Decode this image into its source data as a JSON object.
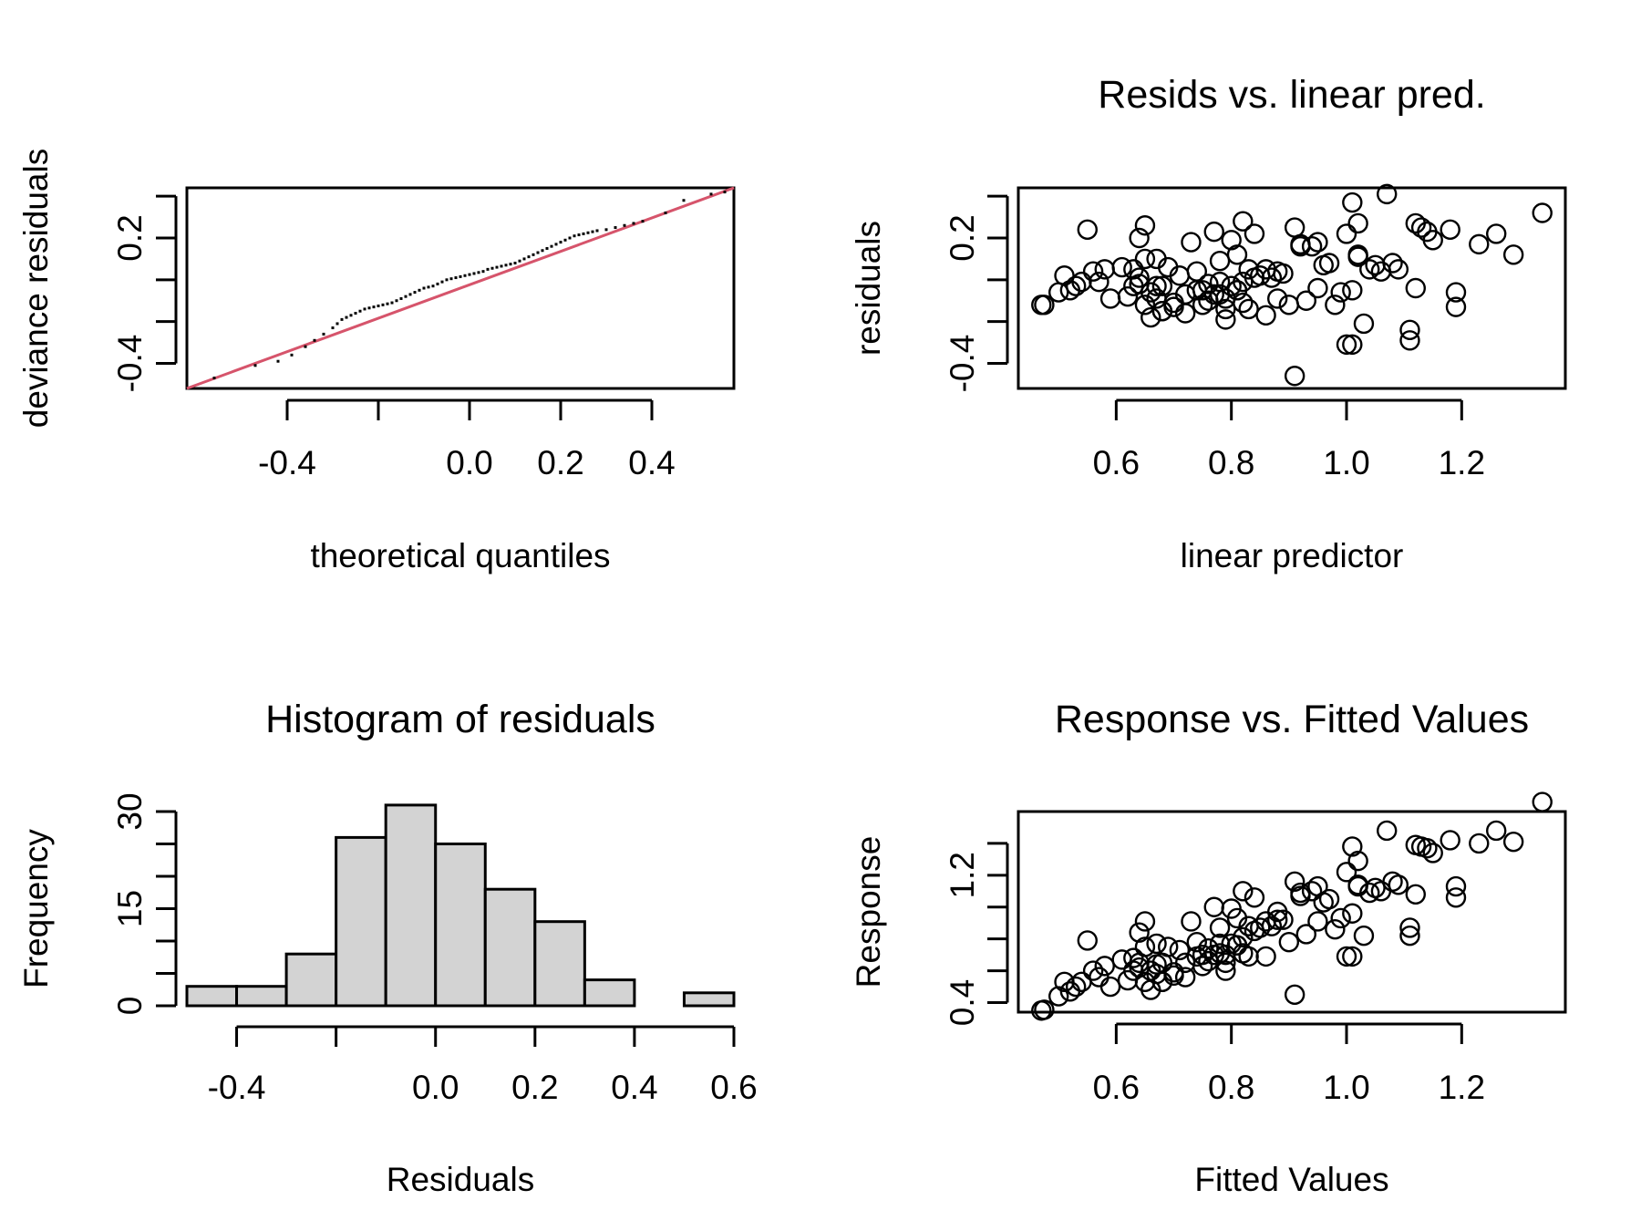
{
  "chart_data": [
    {
      "type": "scatter",
      "title": "",
      "xlabel": "theoretical quantiles",
      "ylabel": "deviance residuals",
      "xlim": [
        -0.62,
        0.58
      ],
      "ylim": [
        -0.52,
        0.44
      ],
      "xticks": [
        -0.4,
        -0.2,
        0.0,
        0.2,
        0.4
      ],
      "xtick_labels": [
        "-0.4",
        "",
        "0.0",
        "0.2",
        "0.4"
      ],
      "yticks": [
        -0.4,
        -0.2,
        0.0,
        0.2,
        0.4
      ],
      "ytick_labels": [
        "-0.4",
        "",
        "",
        "0.2",
        ""
      ],
      "reference_line": {
        "color": "#d6546b",
        "x": [
          -0.62,
          0.58
        ],
        "y": [
          -0.52,
          0.44
        ]
      },
      "points": {
        "x": [
          -0.56,
          -0.47,
          -0.42,
          -0.39,
          -0.36,
          -0.34,
          -0.32,
          -0.3,
          -0.29,
          -0.28,
          -0.27,
          -0.26,
          -0.25,
          -0.24,
          -0.23,
          -0.22,
          -0.21,
          -0.2,
          -0.19,
          -0.18,
          -0.17,
          -0.16,
          -0.15,
          -0.14,
          -0.13,
          -0.12,
          -0.11,
          -0.1,
          -0.09,
          -0.08,
          -0.07,
          -0.06,
          -0.05,
          -0.04,
          -0.03,
          -0.02,
          -0.01,
          0.0,
          0.01,
          0.02,
          0.03,
          0.04,
          0.05,
          0.06,
          0.07,
          0.08,
          0.09,
          0.1,
          0.11,
          0.12,
          0.13,
          0.14,
          0.15,
          0.16,
          0.17,
          0.18,
          0.19,
          0.2,
          0.21,
          0.22,
          0.23,
          0.24,
          0.25,
          0.26,
          0.27,
          0.28,
          0.3,
          0.32,
          0.34,
          0.36,
          0.38,
          0.43,
          0.47,
          0.53,
          0.56
        ],
        "y": [
          -0.47,
          -0.41,
          -0.39,
          -0.36,
          -0.32,
          -0.29,
          -0.26,
          -0.23,
          -0.21,
          -0.19,
          -0.18,
          -0.17,
          -0.16,
          -0.15,
          -0.14,
          -0.135,
          -0.13,
          -0.125,
          -0.12,
          -0.115,
          -0.11,
          -0.1,
          -0.09,
          -0.08,
          -0.07,
          -0.06,
          -0.05,
          -0.04,
          -0.035,
          -0.03,
          -0.02,
          -0.01,
          0.0,
          0.005,
          0.01,
          0.015,
          0.02,
          0.025,
          0.03,
          0.035,
          0.04,
          0.05,
          0.055,
          0.06,
          0.065,
          0.07,
          0.075,
          0.08,
          0.09,
          0.1,
          0.11,
          0.12,
          0.13,
          0.14,
          0.15,
          0.16,
          0.17,
          0.18,
          0.19,
          0.2,
          0.21,
          0.215,
          0.22,
          0.225,
          0.23,
          0.235,
          0.24,
          0.25,
          0.26,
          0.27,
          0.28,
          0.32,
          0.38,
          0.41,
          0.42
        ]
      }
    },
    {
      "type": "scatter",
      "title": "Resids vs. linear pred.",
      "xlabel": "linear predictor",
      "ylabel": "residuals",
      "xlim": [
        0.43,
        1.38
      ],
      "ylim": [
        -0.52,
        0.44
      ],
      "xticks": [
        0.6,
        0.8,
        1.0,
        1.2
      ],
      "xtick_labels": [
        "0.6",
        "0.8",
        "1.0",
        "1.2"
      ],
      "yticks": [
        -0.4,
        -0.2,
        0.0,
        0.2,
        0.4
      ],
      "ytick_labels": [
        "-0.4",
        "",
        "",
        "0.2",
        ""
      ],
      "points": {
        "x": [
          0.47,
          0.475,
          0.5,
          0.51,
          0.52,
          0.53,
          0.54,
          0.55,
          0.56,
          0.57,
          0.58,
          0.59,
          0.62,
          0.63,
          0.63,
          0.64,
          0.64,
          0.65,
          0.65,
          0.65,
          0.66,
          0.66,
          0.67,
          0.67,
          0.68,
          0.68,
          0.69,
          0.7,
          0.71,
          0.72,
          0.73,
          0.74,
          0.74,
          0.75,
          0.76,
          0.76,
          0.77,
          0.77,
          0.78,
          0.78,
          0.79,
          0.79,
          0.8,
          0.8,
          0.81,
          0.81,
          0.82,
          0.82,
          0.83,
          0.83,
          0.84,
          0.85,
          0.86,
          0.87,
          0.88,
          0.89,
          0.9,
          0.91,
          0.92,
          0.93,
          0.94,
          0.95,
          0.96,
          0.97,
          0.98,
          0.99,
          1.0,
          1.01,
          1.01,
          1.02,
          1.02,
          1.03,
          1.04,
          1.05,
          1.07,
          1.08,
          1.09,
          1.11,
          1.12,
          1.12,
          1.13,
          1.14,
          1.15,
          1.18,
          1.19,
          1.19,
          1.23,
          1.26,
          1.29,
          1.34,
          1.0,
          1.01,
          1.06,
          0.91,
          0.92,
          0.95,
          1.02,
          0.64,
          0.61,
          0.67,
          0.7,
          0.75,
          0.88,
          1.11,
          0.86,
          0.84,
          0.78,
          0.81,
          0.68,
          0.72,
          0.79,
          0.82
        ],
        "y": [
          -0.12,
          -0.12,
          -0.06,
          0.02,
          -0.05,
          -0.03,
          -0.01,
          0.24,
          0.04,
          -0.01,
          0.05,
          -0.09,
          -0.08,
          0.05,
          -0.03,
          -0.02,
          0.2,
          -0.12,
          0.1,
          0.26,
          -0.06,
          -0.18,
          -0.03,
          0.1,
          -0.15,
          -0.03,
          0.06,
          -0.13,
          0.02,
          -0.16,
          0.18,
          -0.05,
          0.04,
          -0.12,
          -0.02,
          -0.1,
          -0.07,
          0.23,
          0.09,
          -0.07,
          -0.09,
          -0.14,
          -0.03,
          0.19,
          -0.05,
          0.12,
          -0.01,
          0.28,
          0.05,
          -0.14,
          0.22,
          0.02,
          -0.17,
          0.01,
          0.04,
          0.03,
          -0.12,
          0.25,
          0.17,
          -0.1,
          0.16,
          -0.04,
          0.07,
          0.08,
          -0.12,
          -0.06,
          0.22,
          -0.05,
          0.37,
          0.11,
          0.27,
          -0.21,
          0.05,
          0.07,
          0.41,
          0.08,
          0.05,
          -0.29,
          0.27,
          -0.04,
          0.25,
          0.23,
          0.19,
          0.24,
          -0.06,
          -0.13,
          0.17,
          0.22,
          0.12,
          0.32,
          -0.31,
          -0.31,
          0.04,
          -0.46,
          0.16,
          0.18,
          0.12,
          0.01,
          0.06,
          -0.09,
          -0.11,
          -0.05,
          -0.09,
          -0.24,
          0.05,
          0.01,
          -0.01,
          -0.05,
          -0.15,
          -0.07,
          -0.19,
          -0.11
        ]
      }
    },
    {
      "type": "bar",
      "title": "Histogram of residuals",
      "xlabel": "Residuals",
      "ylabel": "Frequency",
      "xlim": [
        -0.5,
        0.6
      ],
      "ylim": [
        0,
        30
      ],
      "xticks": [
        -0.4,
        -0.2,
        0.0,
        0.2,
        0.4,
        0.6
      ],
      "xtick_labels": [
        "-0.4",
        "",
        "0.0",
        "0.2",
        "0.4",
        "0.6"
      ],
      "yticks": [
        0,
        5,
        10,
        15,
        20,
        25,
        30
      ],
      "ytick_labels": [
        "0",
        "",
        "",
        "15",
        "",
        "",
        "30"
      ],
      "bins": [
        [
          -0.5,
          -0.4
        ],
        [
          -0.4,
          -0.3
        ],
        [
          -0.3,
          -0.2
        ],
        [
          -0.2,
          -0.1
        ],
        [
          -0.1,
          0.0
        ],
        [
          0.0,
          0.1
        ],
        [
          0.1,
          0.2
        ],
        [
          0.2,
          0.3
        ],
        [
          0.3,
          0.4
        ],
        [
          0.4,
          0.5
        ],
        [
          0.5,
          0.6
        ]
      ],
      "values": [
        3,
        3,
        8,
        26,
        31,
        25,
        18,
        13,
        4,
        0,
        2
      ]
    },
    {
      "type": "scatter",
      "title": "Response vs. Fitted Values",
      "xlabel": "Fitted Values",
      "ylabel": "Response",
      "xlim": [
        0.43,
        1.38
      ],
      "ylim": [
        0.34,
        1.6
      ],
      "xticks": [
        0.6,
        0.8,
        1.0,
        1.2
      ],
      "xtick_labels": [
        "0.6",
        "0.8",
        "1.0",
        "1.2"
      ],
      "yticks": [
        0.4,
        0.6,
        0.8,
        1.0,
        1.2,
        1.4
      ],
      "ytick_labels": [
        "0.4",
        "",
        "",
        "",
        "1.2",
        ""
      ],
      "points": {
        "x": [
          0.47,
          0.475,
          0.5,
          0.51,
          0.52,
          0.53,
          0.54,
          0.55,
          0.56,
          0.57,
          0.58,
          0.59,
          0.62,
          0.63,
          0.63,
          0.64,
          0.64,
          0.65,
          0.65,
          0.65,
          0.66,
          0.66,
          0.67,
          0.67,
          0.68,
          0.68,
          0.69,
          0.7,
          0.71,
          0.72,
          0.73,
          0.74,
          0.74,
          0.75,
          0.76,
          0.76,
          0.77,
          0.77,
          0.78,
          0.78,
          0.79,
          0.79,
          0.8,
          0.8,
          0.81,
          0.81,
          0.82,
          0.82,
          0.83,
          0.83,
          0.84,
          0.85,
          0.86,
          0.87,
          0.88,
          0.89,
          0.9,
          0.91,
          0.92,
          0.93,
          0.94,
          0.95,
          0.96,
          0.97,
          0.98,
          0.99,
          1.0,
          1.01,
          1.01,
          1.02,
          1.02,
          1.03,
          1.04,
          1.05,
          1.07,
          1.08,
          1.09,
          1.11,
          1.12,
          1.12,
          1.13,
          1.14,
          1.15,
          1.18,
          1.19,
          1.19,
          1.23,
          1.26,
          1.29,
          1.34,
          1.0,
          1.01,
          1.06,
          0.91,
          0.92,
          0.95,
          1.02,
          0.64,
          0.61,
          0.67,
          0.7,
          0.75,
          0.88,
          1.11,
          0.86,
          0.84,
          0.78,
          0.81,
          0.68,
          0.72,
          0.79,
          0.82
        ],
        "y": [
          0.35,
          0.355,
          0.44,
          0.53,
          0.47,
          0.5,
          0.53,
          0.79,
          0.6,
          0.56,
          0.63,
          0.5,
          0.54,
          0.68,
          0.6,
          0.62,
          0.84,
          0.53,
          0.75,
          0.91,
          0.6,
          0.48,
          0.64,
          0.77,
          0.53,
          0.65,
          0.75,
          0.57,
          0.73,
          0.56,
          0.91,
          0.69,
          0.78,
          0.63,
          0.74,
          0.66,
          0.7,
          1.0,
          0.87,
          0.71,
          0.7,
          0.65,
          0.77,
          0.99,
          0.76,
          0.93,
          0.81,
          1.1,
          0.88,
          0.69,
          1.06,
          0.87,
          0.69,
          0.88,
          0.92,
          0.92,
          0.78,
          1.16,
          1.09,
          0.83,
          1.1,
          0.91,
          1.03,
          1.05,
          0.86,
          0.93,
          1.22,
          0.96,
          1.38,
          1.13,
          1.29,
          0.82,
          1.09,
          1.12,
          1.48,
          1.16,
          1.14,
          0.82,
          1.39,
          1.08,
          1.38,
          1.37,
          1.34,
          1.42,
          1.13,
          1.06,
          1.4,
          1.48,
          1.41,
          1.66,
          0.69,
          0.69,
          1.1,
          0.45,
          1.07,
          1.13,
          1.14,
          0.65,
          0.67,
          0.58,
          0.59,
          0.7,
          0.97,
          0.87,
          0.91,
          0.85,
          0.77,
          0.76,
          0.53,
          0.65,
          0.6,
          0.71
        ]
      }
    }
  ]
}
